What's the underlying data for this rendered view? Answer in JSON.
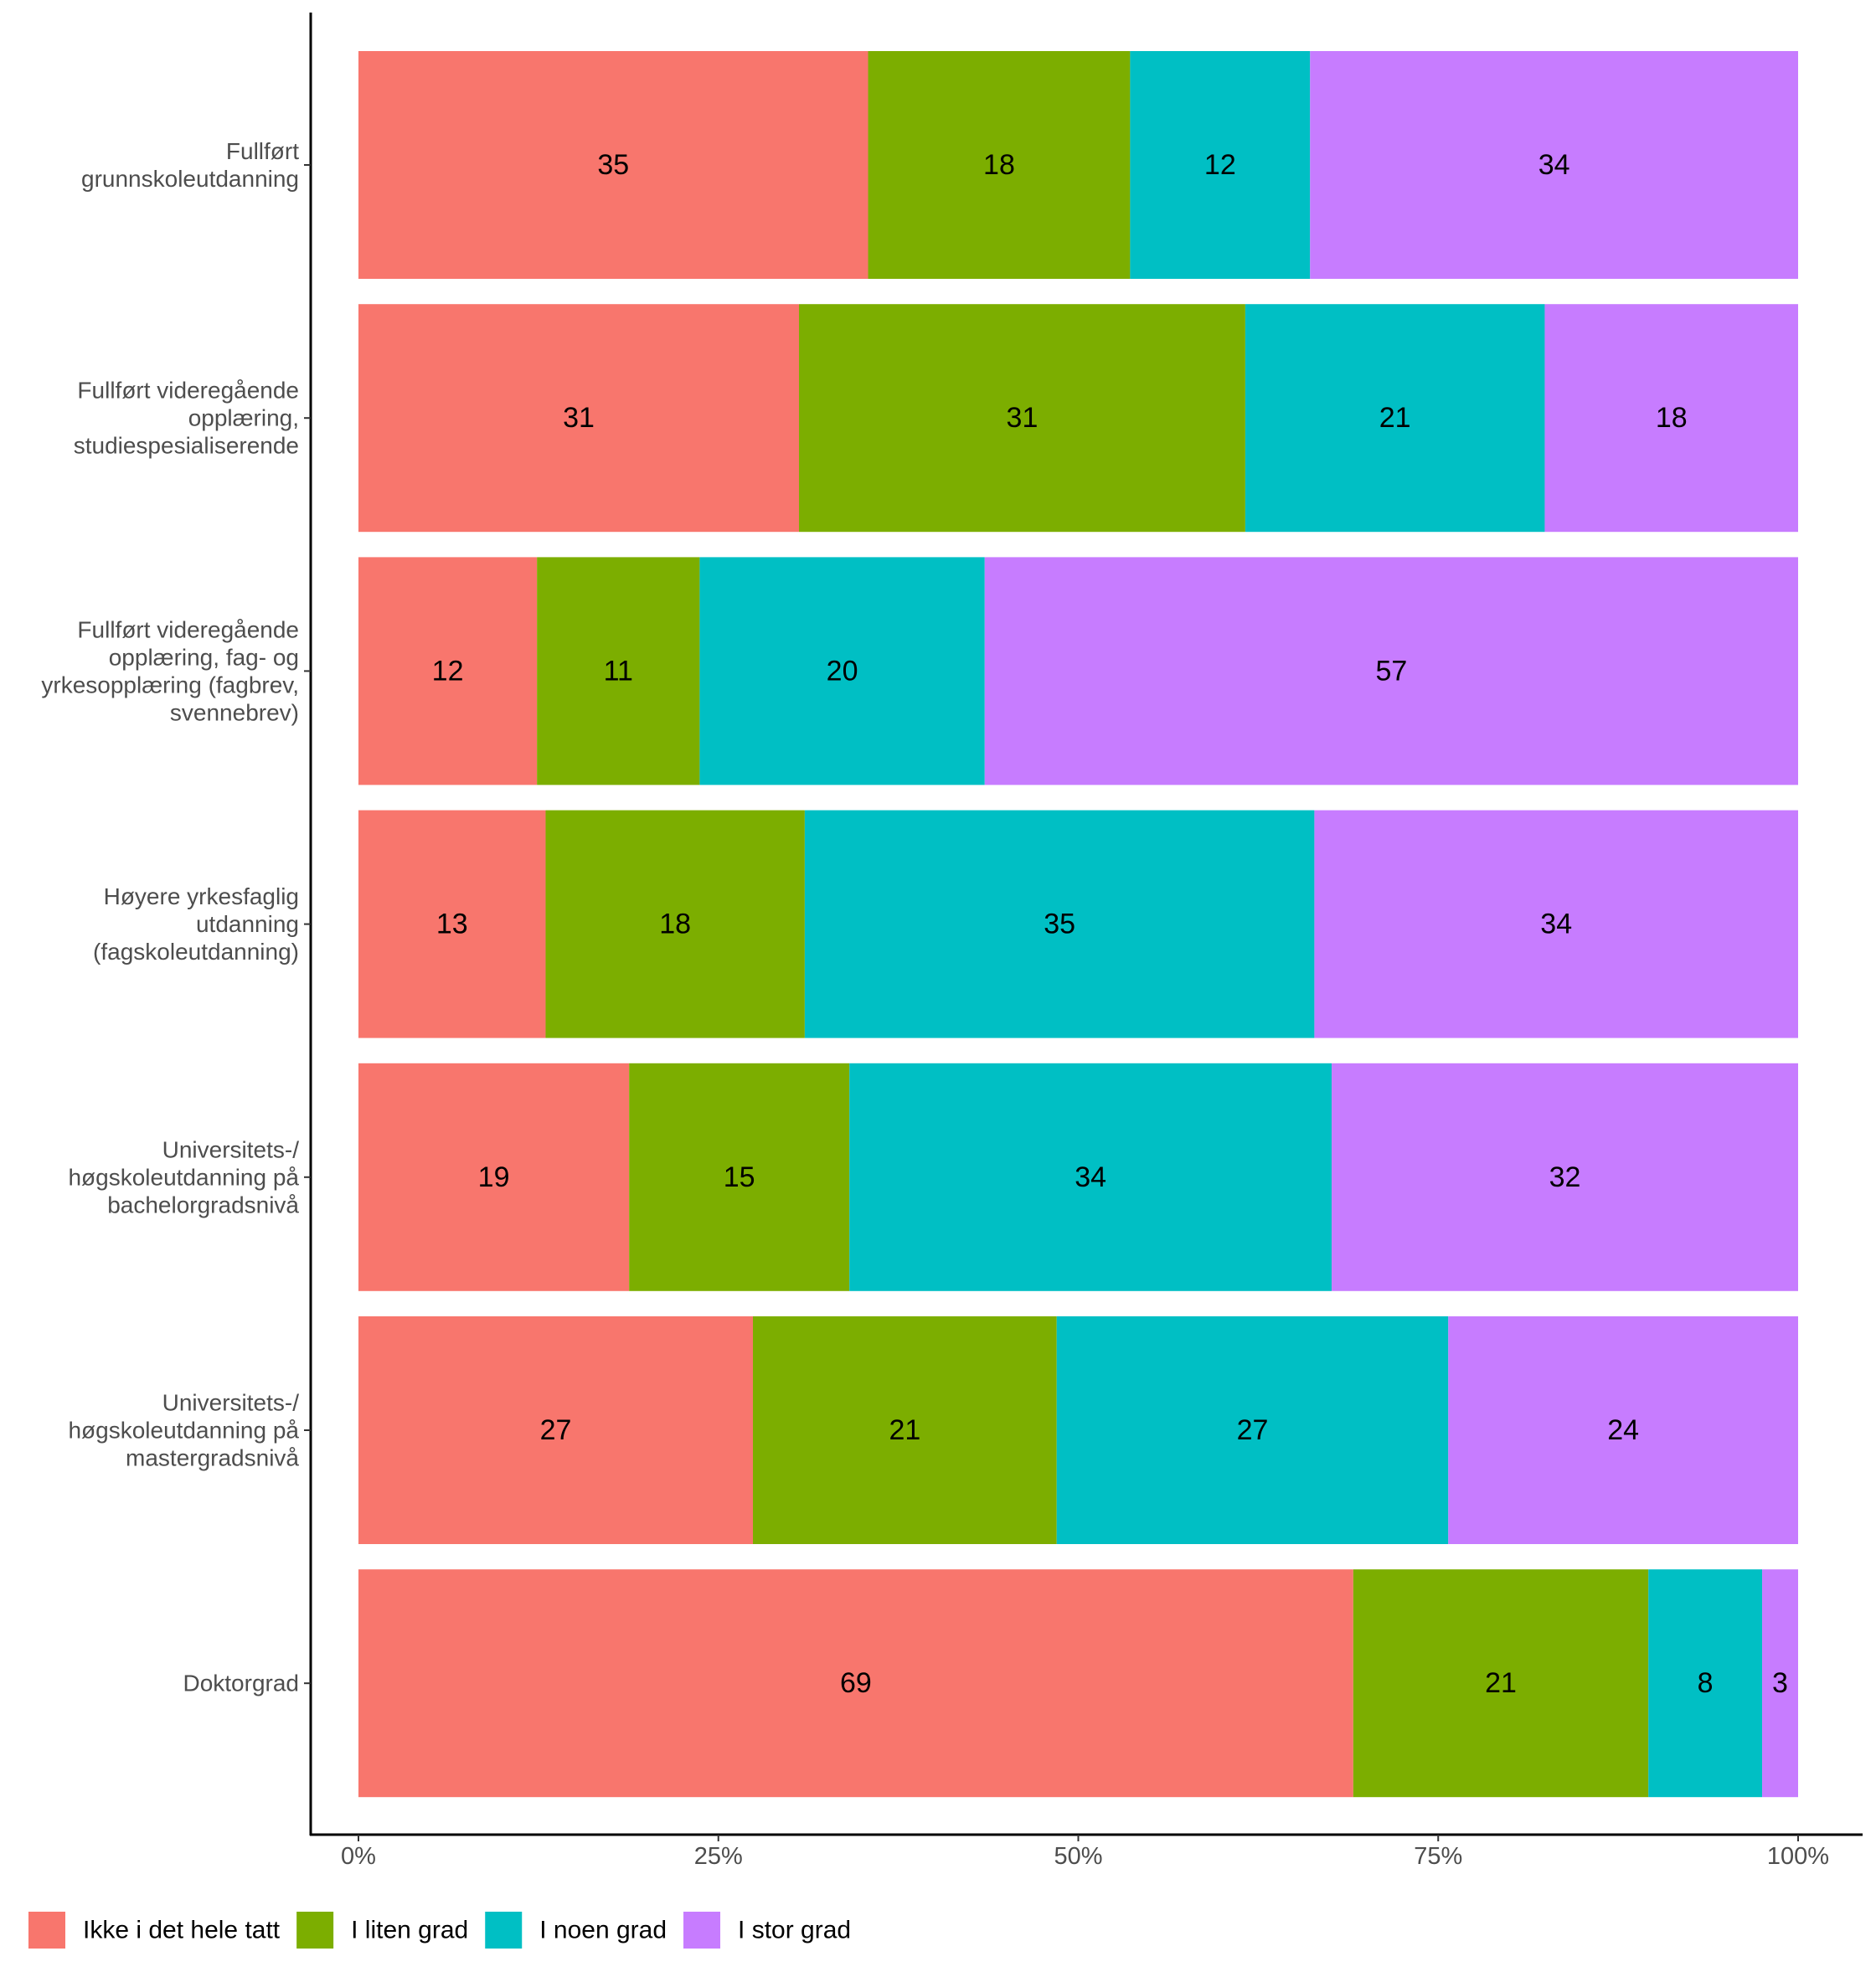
{
  "chart_data": {
    "type": "bar",
    "orientation": "horizontal",
    "stacked": true,
    "normalized": true,
    "title": "",
    "xlabel": "",
    "ylabel": "",
    "xlim": [
      0,
      100
    ],
    "x_ticks": [
      "0%",
      "25%",
      "50%",
      "75%",
      "100%"
    ],
    "x_tick_values": [
      0,
      25,
      50,
      75,
      100
    ],
    "grid": false,
    "legend_position": "bottom-left",
    "categories": [
      [
        "Fullført",
        "grunnskoleutdanning"
      ],
      [
        "Fullført videregående",
        "opplæring,",
        "studiespesialiserende"
      ],
      [
        "Fullført videregående",
        "opplæring, fag- og",
        "yrkesopplæring (fagbrev,",
        "svennebrev)"
      ],
      [
        "Høyere yrkesfaglig",
        "utdanning",
        "(fagskoleutdanning)"
      ],
      [
        "Universitets-/",
        "høgskoleutdanning på",
        "bachelorgradsnivå"
      ],
      [
        "Universitets-/",
        "høgskoleutdanning på",
        "mastergradsnivå"
      ],
      [
        "Doktorgrad"
      ]
    ],
    "series": [
      {
        "name": "Ikke i det hele tatt",
        "color": "#F8766D",
        "values": [
          35.4,
          30.6,
          12.4,
          13.0,
          18.8,
          27.4,
          69.1
        ],
        "labels": [
          "35",
          "31",
          "12",
          "13",
          "19",
          "27",
          "69"
        ]
      },
      {
        "name": "I liten grad",
        "color": "#7CAE00",
        "values": [
          18.2,
          31.0,
          11.3,
          18.0,
          15.3,
          21.1,
          20.5
        ],
        "labels": [
          "18",
          "31",
          "11",
          "18",
          "15",
          "21",
          "21"
        ]
      },
      {
        "name": "I noen grad",
        "color": "#00BFC4",
        "values": [
          12.5,
          20.8,
          19.8,
          35.4,
          33.5,
          27.2,
          7.9
        ],
        "labels": [
          "12",
          "21",
          "20",
          "35",
          "34",
          "27",
          "8"
        ]
      },
      {
        "name": "I stor grad",
        "color": "#C77CFF",
        "values": [
          33.9,
          17.6,
          56.5,
          33.6,
          32.4,
          24.3,
          2.5
        ],
        "labels": [
          "34",
          "18",
          "57",
          "34",
          "32",
          "24",
          "3"
        ]
      }
    ]
  }
}
